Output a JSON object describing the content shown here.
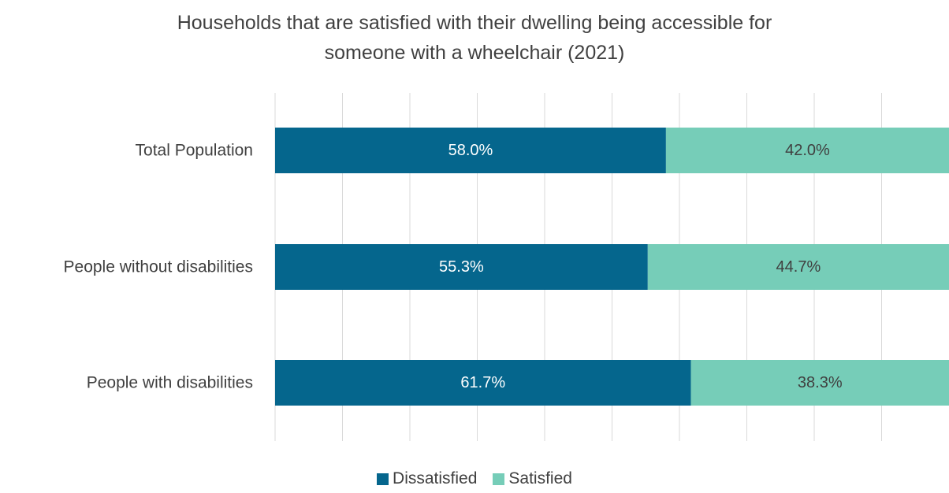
{
  "chart_data": {
    "type": "bar",
    "orientation": "horizontal",
    "stacked": true,
    "title_lines": [
      "Households that are satisfied with their dwelling being accessible for",
      "someone with a wheelchair (2021)"
    ],
    "categories": [
      "Total Population",
      "People without disabilities",
      "People with disabilities"
    ],
    "series": [
      {
        "name": "Dissatisfied",
        "color": "#05668d",
        "values": [
          58.0,
          55.3,
          61.7
        ]
      },
      {
        "name": "Satisfied",
        "color": "#76cdb8",
        "values": [
          42.0,
          44.7,
          38.3
        ]
      }
    ],
    "data_labels": [
      [
        "58.0%",
        "55.3%",
        "61.7%"
      ],
      [
        "42.0%",
        "44.7%",
        "38.3%"
      ]
    ],
    "xlim": [
      0,
      100
    ],
    "grid": true,
    "legend_position": "bottom"
  }
}
